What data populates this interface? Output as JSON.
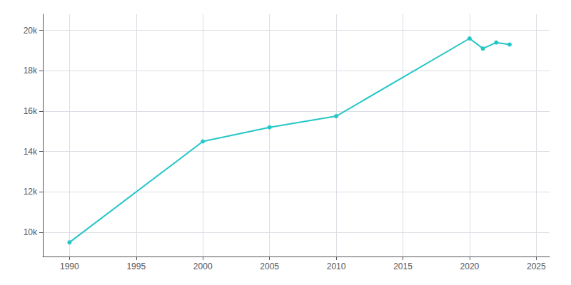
{
  "chart_data": {
    "type": "line",
    "x": [
      1990,
      2000,
      2005,
      2010,
      2020,
      2021,
      2022,
      2023
    ],
    "values": [
      9500,
      14500,
      15200,
      15750,
      19600,
      19100,
      19400,
      19300
    ],
    "color": "#26C6C6",
    "marker": "circle",
    "xlim": [
      1988,
      2026
    ],
    "ylim": [
      8800,
      20800
    ],
    "xticks": [
      1990,
      1995,
      2000,
      2005,
      2010,
      2015,
      2020,
      2025
    ],
    "yticks": [
      {
        "value": 10000,
        "label": "10k"
      },
      {
        "value": 12000,
        "label": "12k"
      },
      {
        "value": 14000,
        "label": "14k"
      },
      {
        "value": 16000,
        "label": "16k"
      },
      {
        "value": 18000,
        "label": "18k"
      },
      {
        "value": 20000,
        "label": "20k"
      }
    ],
    "grid": true
  }
}
